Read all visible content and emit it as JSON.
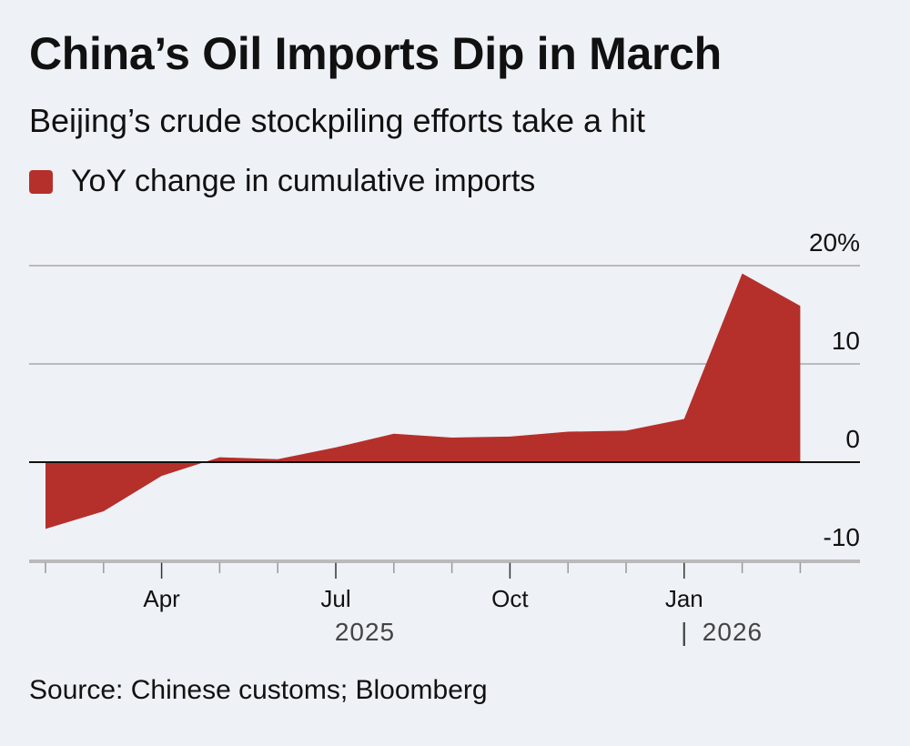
{
  "chart_data": {
    "type": "area",
    "title": "China’s Oil Imports Dip in March",
    "subtitle": "Beijing’s crude stockpiling efforts take a hit",
    "legend": {
      "placement": "top-left",
      "entries": [
        "YoY change in cumulative imports"
      ]
    },
    "source": "Source: Chinese customs; Bloomberg",
    "x": [
      "2025-02",
      "2025-03",
      "2025-04",
      "2025-05",
      "2025-06",
      "2025-07",
      "2025-08",
      "2025-09",
      "2025-10",
      "2025-11",
      "2025-12",
      "2026-01",
      "2026-02",
      "2026-03"
    ],
    "series": [
      {
        "name": "YoY change in cumulative imports",
        "values": [
          -6.8,
          -5.0,
          -1.4,
          0.5,
          0.3,
          1.5,
          2.9,
          2.5,
          2.6,
          3.1,
          3.2,
          4.4,
          19.2,
          15.9
        ]
      }
    ],
    "x_tick_labels": [
      {
        "at": "2025-04",
        "label": "Apr"
      },
      {
        "at": "2025-07",
        "label": "Jul"
      },
      {
        "at": "2025-10",
        "label": "Oct"
      },
      {
        "at": "2026-01",
        "label": "Jan"
      }
    ],
    "year_labels": [
      {
        "at": "2025-07",
        "label": "2025"
      },
      {
        "at": "2026-01",
        "label": "2026",
        "separator": "|"
      }
    ],
    "y_ticks": [
      {
        "value": 20,
        "label": "20%"
      },
      {
        "value": 10,
        "label": "10"
      },
      {
        "value": 0,
        "label": "0"
      },
      {
        "value": -10,
        "label": "-10"
      }
    ],
    "ylim": [
      -10,
      20
    ],
    "y_axis_side": "right",
    "grid": true,
    "colors": {
      "fill": "#b5302b",
      "grid": "#a8a8a8",
      "zero_line": "#111111",
      "axis_text": "#111111",
      "year_text": "#444444"
    }
  }
}
